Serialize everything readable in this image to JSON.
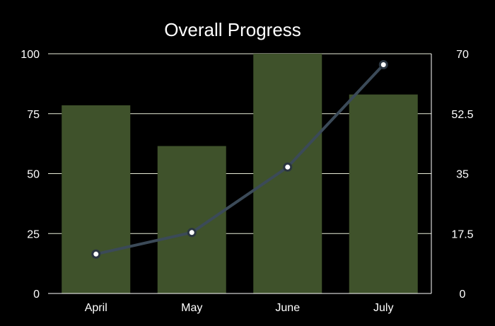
{
  "chart_data": {
    "type": "bar",
    "title": "Overall Progress",
    "categories": [
      "April",
      "May",
      "June",
      "July"
    ],
    "series": [
      {
        "type": "bar",
        "axis": "left",
        "values": [
          78.5,
          61.5,
          100,
          83
        ]
      },
      {
        "type": "line",
        "axis": "right",
        "values": [
          11.5,
          17.8,
          36.9,
          66.8
        ]
      }
    ],
    "ylim": [
      0,
      100
    ],
    "y_ticks": [
      "0",
      "25",
      "50",
      "75",
      "100"
    ],
    "y2lim": [
      0,
      70
    ],
    "y2_ticks": [
      "0",
      "17.5",
      "35",
      "52.5",
      "70"
    ],
    "grid": true,
    "colors": {
      "background": "#000000",
      "bar": "#3f522b",
      "line": "#3b4a58",
      "grid": "#e8ecd8",
      "text": "#ffffff"
    }
  }
}
